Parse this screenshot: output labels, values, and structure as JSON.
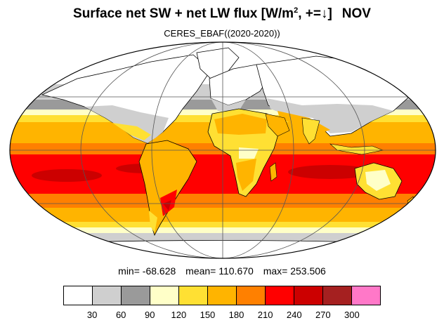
{
  "title": {
    "main": "Surface net SW + net LW flux [W/m",
    "sup": "2",
    "rest": ", +=↓]",
    "month": "NOV"
  },
  "subtitle": "CERES_EBAF((2020-2020))",
  "stats": {
    "min": "min= -68.628",
    "mean": "mean= 110.670",
    "max": "max= 253.506"
  },
  "colorbar": {
    "colors": [
      "#ffffff",
      "#cfcfcf",
      "#9a9a9a",
      "#ffffc8",
      "#ffe033",
      "#ffb400",
      "#ff8000",
      "#ff0000",
      "#cc0000",
      "#a52020",
      "#ff78c8"
    ],
    "labels": [
      "30",
      "60",
      "90",
      "120",
      "150",
      "180",
      "210",
      "240",
      "270",
      "300"
    ]
  }
}
